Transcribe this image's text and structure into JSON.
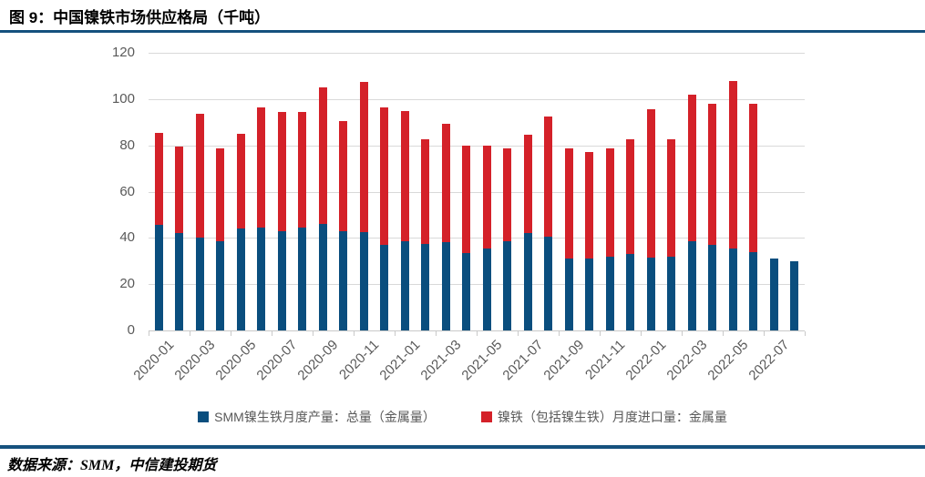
{
  "header": {
    "title": "图 9：中国镍铁市场供应格局（千吨）"
  },
  "footer": {
    "source": "数据来源：SMM，中信建投期货"
  },
  "colors": {
    "production": "#0A4E7E",
    "imports": "#D42129",
    "rule": "#15517E",
    "grid": "#D9D9D9",
    "axis_text": "#595959"
  },
  "chart_data": {
    "type": "bar",
    "stacked": true,
    "title": "中国镍铁市场供应格局（千吨）",
    "unit": "千吨",
    "categories": [
      "2020-01",
      "2020-02",
      "2020-03",
      "2020-04",
      "2020-05",
      "2020-06",
      "2020-07",
      "2020-08",
      "2020-09",
      "2020-10",
      "2020-11",
      "2020-12",
      "2021-01",
      "2021-02",
      "2021-03",
      "2021-04",
      "2021-05",
      "2021-06",
      "2021-07",
      "2021-08",
      "2021-09",
      "2021-10",
      "2021-11",
      "2021-12",
      "2022-01",
      "2022-02",
      "2022-03",
      "2022-04",
      "2022-05",
      "2022-06",
      "2022-07",
      "2022-08"
    ],
    "series": [
      {
        "name": "SMM镍生铁月度产量：总量（金属量）",
        "color_key": "production",
        "values": [
          45.5,
          42,
          40,
          38.5,
          44,
          44.5,
          43,
          44.5,
          46,
          43,
          42.5,
          37,
          38.5,
          37.5,
          38,
          33.5,
          35.5,
          38.5,
          42,
          40.5,
          31,
          31,
          32,
          33,
          31.5,
          32,
          38.5,
          37,
          35.5,
          34,
          31,
          30
        ]
      },
      {
        "name": "镍铁（包括镍生铁）月度进口量：金属量",
        "color_key": "imports",
        "values": [
          40,
          37.5,
          53.5,
          40,
          41,
          52,
          51.5,
          50,
          59,
          47.5,
          65,
          59.5,
          56.5,
          45,
          51.5,
          46.5,
          44.5,
          40,
          42.5,
          52,
          47.5,
          46,
          46.5,
          49.5,
          64,
          50.5,
          63.5,
          61,
          72.5,
          64,
          0,
          0
        ]
      }
    ],
    "ylim": [
      0,
      120
    ],
    "ytick_step": 20,
    "ytick_labels": [
      "0",
      "20",
      "40",
      "60",
      "80",
      "100",
      "120"
    ],
    "xtick_labels": [
      "2020-01",
      "2020-03",
      "2020-05",
      "2020-07",
      "2020-09",
      "2020-11",
      "2021-01",
      "2021-03",
      "2021-05",
      "2021-07",
      "2021-09",
      "2021-11",
      "2022-01",
      "2022-03",
      "2022-05",
      "2022-07"
    ],
    "xtick_every": 2,
    "grid": "horizontal",
    "legend_position": "bottom"
  }
}
